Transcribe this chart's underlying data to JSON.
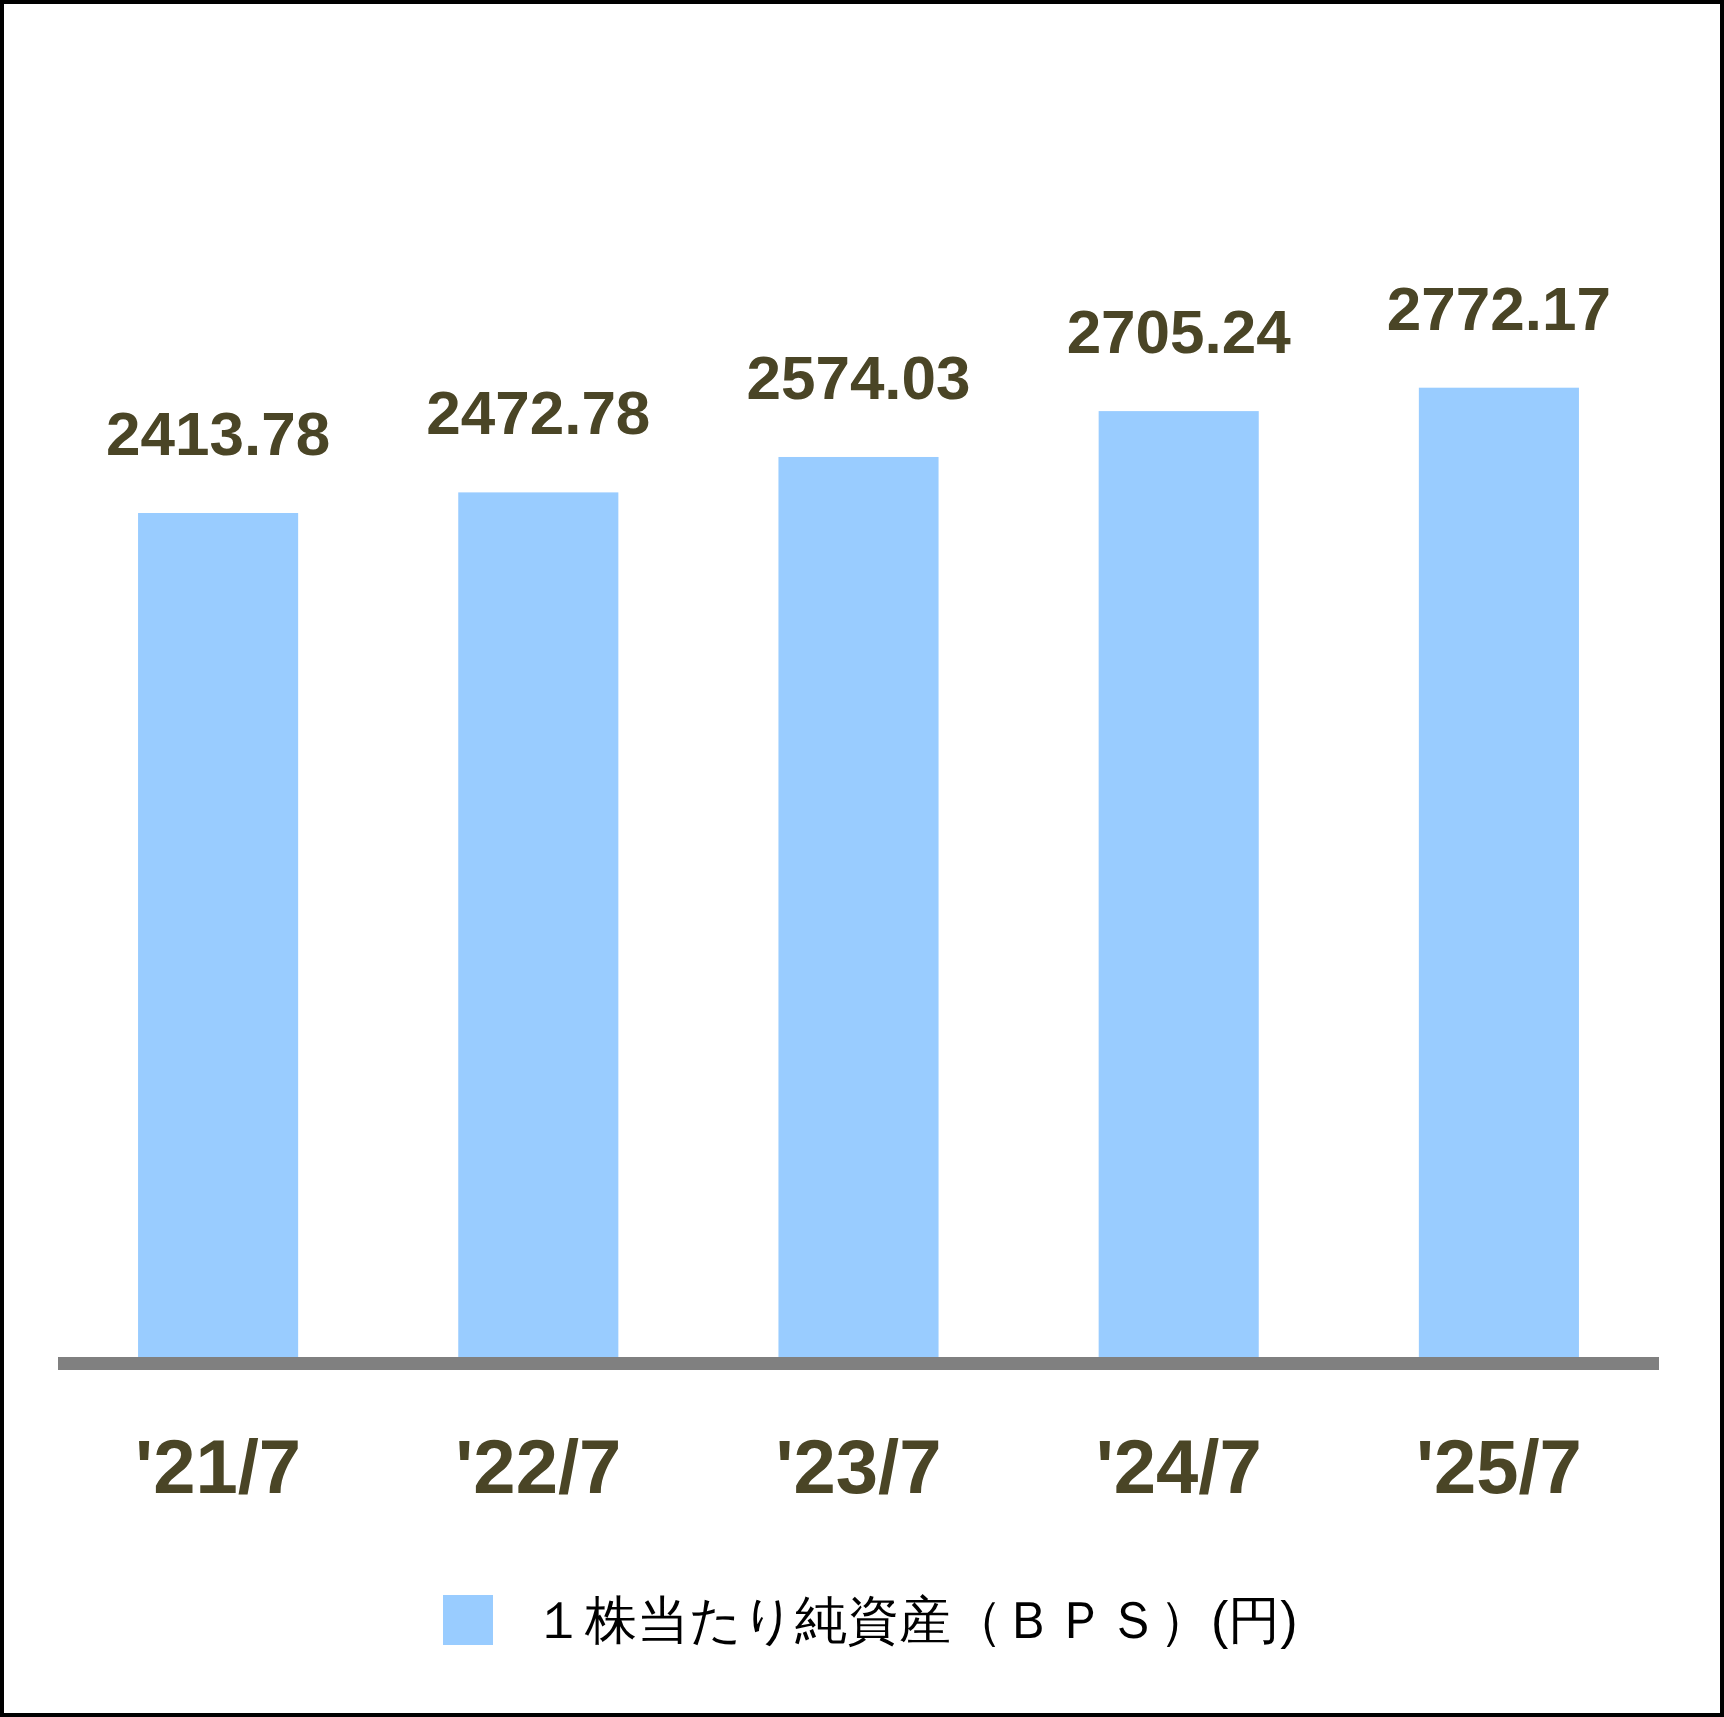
{
  "chart_data": {
    "type": "bar",
    "categories": [
      "'21/7",
      "'22/7",
      "'23/7",
      "'24/7",
      "'25/7"
    ],
    "series": [
      {
        "name": "１株当たり純資産（ＢＰＳ）(円)",
        "color": "#99ccff",
        "values": [
          2413.78,
          2472.78,
          2574.03,
          2705.24,
          2772.17
        ]
      }
    ],
    "data_labels": true,
    "legend": "bottom"
  }
}
